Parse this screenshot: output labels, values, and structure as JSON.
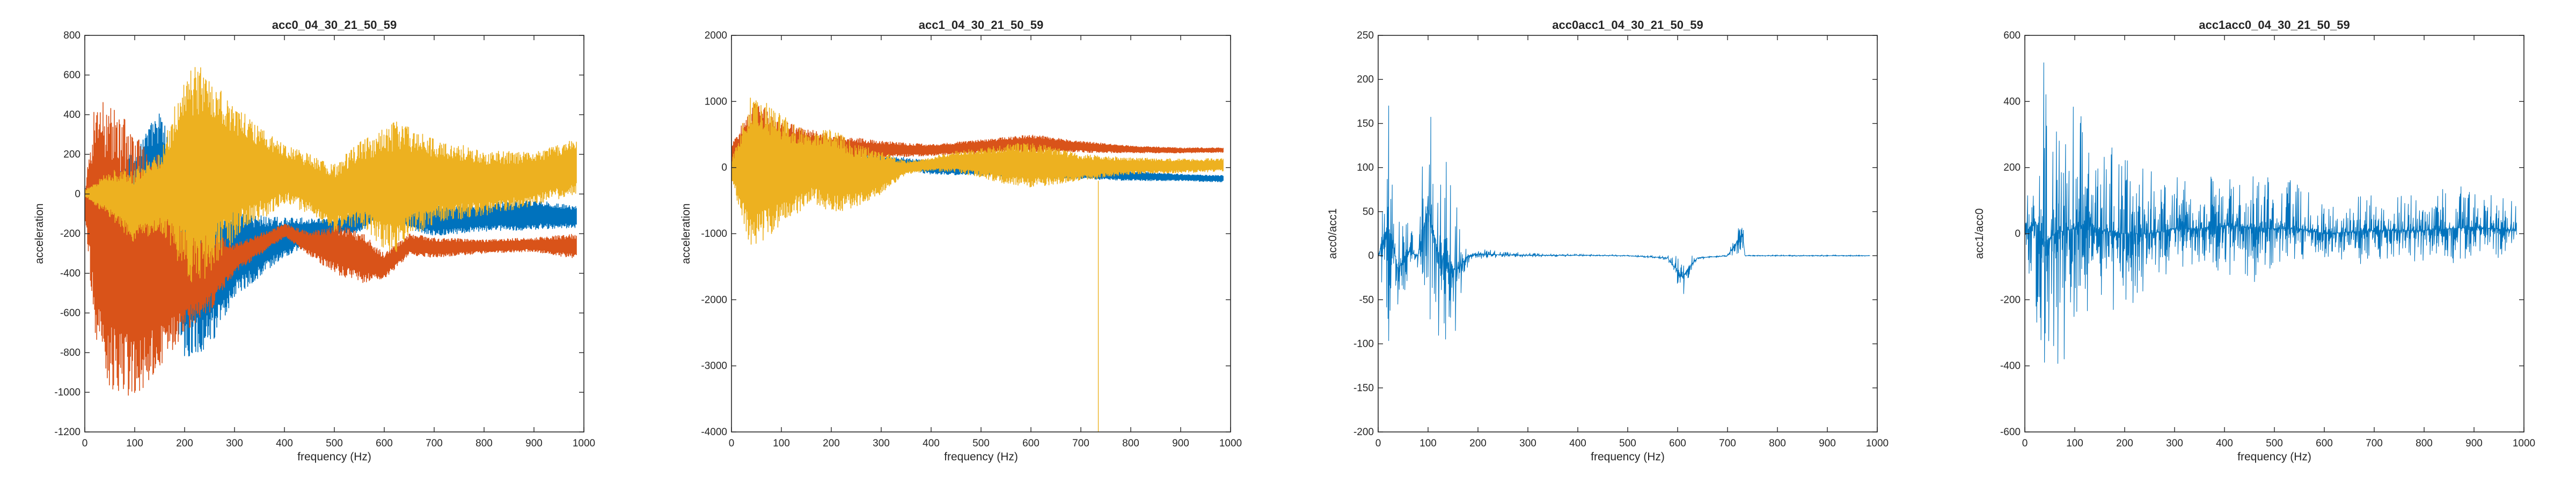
{
  "figure": {
    "panels": [
      {
        "title": "acc0_04_30_21_50_59",
        "xlabel": "frequency (Hz)",
        "ylabel": "acceleration",
        "xlim": [
          0,
          1000
        ],
        "ylim": [
          -1200,
          800
        ],
        "xticks": [
          0,
          100,
          200,
          300,
          400,
          500,
          600,
          700,
          800,
          900,
          1000
        ],
        "yticks": [
          -1200,
          -1000,
          -800,
          -600,
          -400,
          -200,
          0,
          200,
          400,
          600,
          800
        ]
      },
      {
        "title": "acc1_04_30_21_50_59",
        "xlabel": "frequency (Hz)",
        "ylabel": "acceleration",
        "xlim": [
          0,
          1000
        ],
        "ylim": [
          -4000,
          2000
        ],
        "xticks": [
          0,
          100,
          200,
          300,
          400,
          500,
          600,
          700,
          800,
          900,
          1000
        ],
        "yticks": [
          -4000,
          -3000,
          -2000,
          -1000,
          0,
          1000,
          2000
        ]
      },
      {
        "title": "acc0acc1_04_30_21_50_59",
        "xlabel": "frequency (Hz)",
        "ylabel": "acc0/acc1",
        "xlim": [
          0,
          1000
        ],
        "ylim": [
          -200,
          250
        ],
        "xticks": [
          0,
          100,
          200,
          300,
          400,
          500,
          600,
          700,
          800,
          900,
          1000
        ],
        "yticks": [
          -200,
          -150,
          -100,
          -50,
          0,
          50,
          100,
          150,
          200,
          250
        ]
      },
      {
        "title": "acc1acc0_04_30_21_50_59",
        "xlabel": "frequency (Hz)",
        "ylabel": "acc1/acc0",
        "xlim": [
          0,
          1000
        ],
        "ylim": [
          -600,
          600
        ],
        "xticks": [
          0,
          100,
          200,
          300,
          400,
          500,
          600,
          700,
          800,
          900,
          1000
        ],
        "yticks": [
          -600,
          -400,
          -200,
          0,
          200,
          400,
          600
        ]
      }
    ]
  },
  "chart_data": [
    {
      "type": "line",
      "title": "acc0_04_30_21_50_59",
      "xlabel": "frequency (Hz)",
      "ylabel": "acceleration",
      "xlim": [
        0,
        1000
      ],
      "ylim": [
        -1200,
        800
      ],
      "grid": false,
      "series": [
        {
          "color": "#0072BD",
          "x": [
            0,
            20,
            50,
            100,
            150,
            200,
            250,
            300,
            400,
            450,
            500,
            550,
            600,
            650,
            700,
            800,
            900,
            985
          ],
          "upper": [
            30,
            60,
            100,
            250,
            420,
            120,
            10,
            -80,
            -120,
            -120,
            -130,
            -70,
            -50,
            -80,
            -60,
            -45,
            -30,
            -60
          ],
          "lower": [
            -10,
            -60,
            -150,
            -200,
            -300,
            -830,
            -780,
            -520,
            -320,
            -260,
            -200,
            -200,
            -100,
            -180,
            -210,
            -190,
            -180,
            -170
          ]
        },
        {
          "color": "#D95319",
          "x": [
            0,
            20,
            50,
            100,
            150,
            200,
            250,
            300,
            400,
            450,
            500,
            550,
            600,
            650,
            700,
            800,
            900,
            985
          ],
          "upper": [
            0,
            480,
            500,
            300,
            200,
            -100,
            -180,
            -250,
            -150,
            -190,
            -150,
            -180,
            -300,
            -200,
            -220,
            -230,
            -220,
            -200
          ],
          "lower": [
            -100,
            -700,
            -1000,
            -1020,
            -900,
            -700,
            -600,
            -400,
            -220,
            -310,
            -400,
            -450,
            -430,
            -310,
            -320,
            -300,
            -290,
            -330
          ]
        },
        {
          "color": "#EDB120",
          "x": [
            0,
            20,
            50,
            100,
            150,
            200,
            225,
            250,
            300,
            400,
            450,
            500,
            550,
            600,
            625,
            650,
            700,
            800,
            900,
            985
          ],
          "upper": [
            20,
            60,
            120,
            130,
            200,
            600,
            650,
            620,
            450,
            250,
            200,
            150,
            260,
            330,
            370,
            340,
            280,
            220,
            210,
            280
          ],
          "lower": [
            -10,
            -60,
            -120,
            -250,
            -180,
            -400,
            -480,
            -400,
            -230,
            -50,
            -100,
            -190,
            -160,
            -280,
            -300,
            -230,
            -150,
            -110,
            -60,
            0
          ]
        }
      ]
    },
    {
      "type": "line",
      "title": "acc1_04_30_21_50_59",
      "xlabel": "frequency (Hz)",
      "ylabel": "acceleration",
      "xlim": [
        0,
        1000
      ],
      "ylim": [
        -4000,
        2000
      ],
      "grid": false,
      "series": [
        {
          "color": "#0072BD",
          "x": [
            0,
            50,
            100,
            200,
            300,
            350,
            400,
            500,
            600,
            700,
            800,
            900,
            985
          ],
          "upper": [
            100,
            300,
            200,
            200,
            200,
            150,
            100,
            50,
            0,
            -20,
            -50,
            -100,
            -120
          ],
          "lower": [
            -100,
            -300,
            -200,
            -150,
            -100,
            -50,
            -100,
            -120,
            -150,
            -170,
            -200,
            -200,
            -220
          ]
        },
        {
          "color": "#D95319",
          "x": [
            0,
            50,
            100,
            200,
            300,
            400,
            500,
            600,
            700,
            800,
            900,
            985
          ],
          "upper": [
            400,
            1000,
            700,
            500,
            400,
            350,
            420,
            500,
            400,
            330,
            300,
            300
          ],
          "lower": [
            -100,
            -200,
            -100,
            50,
            150,
            180,
            210,
            230,
            230,
            220,
            220,
            230
          ]
        },
        {
          "color": "#EDB120",
          "x": [
            0,
            40,
            80,
            120,
            160,
            200,
            250,
            300,
            350,
            400,
            450,
            500,
            550,
            600,
            650,
            700,
            800,
            900,
            985
          ],
          "upper": [
            100,
            1200,
            900,
            700,
            500,
            600,
            350,
            250,
            100,
            150,
            250,
            300,
            350,
            380,
            300,
            200,
            150,
            130,
            140
          ],
          "lower": [
            -200,
            -1300,
            -1000,
            -800,
            -500,
            -700,
            -600,
            -400,
            -100,
            -50,
            -80,
            -150,
            -250,
            -300,
            -250,
            -200,
            -100,
            -80,
            -60
          ]
        }
      ]
    },
    {
      "type": "line",
      "title": "acc0acc1_04_30_21_50_59",
      "xlabel": "frequency (Hz)",
      "ylabel": "acc0/acc1",
      "xlim": [
        0,
        1000
      ],
      "ylim": [
        -200,
        250
      ],
      "grid": false,
      "series": [
        {
          "color": "#0072BD",
          "x": [
            0,
            20,
            40,
            60,
            80,
            100,
            120,
            140,
            160,
            180,
            200,
            250,
            300,
            400,
            500,
            580,
            600,
            610,
            620,
            640,
            700,
            730,
            735,
            800,
            900,
            985
          ],
          "upper": [
            2,
            220,
            40,
            50,
            20,
            210,
            130,
            120,
            50,
            10,
            8,
            5,
            3,
            2,
            1,
            0,
            0,
            0,
            0,
            0,
            1,
            52,
            1,
            1,
            1,
            1
          ],
          "lower": [
            -2,
            -150,
            -70,
            -40,
            -20,
            -100,
            -120,
            -150,
            -80,
            -10,
            -4,
            -3,
            -2,
            -1,
            -1,
            -5,
            -35,
            -50,
            -30,
            -5,
            -1,
            -1,
            -1,
            -1,
            -1,
            -1
          ]
        }
      ]
    },
    {
      "type": "line",
      "title": "acc1acc0_04_30_21_50_59",
      "xlabel": "frequency (Hz)",
      "ylabel": "acc1/acc0",
      "xlim": [
        0,
        1000
      ],
      "ylim": [
        -600,
        600
      ],
      "grid": false,
      "series": [
        {
          "color": "#0072BD",
          "x": [
            0,
            20,
            40,
            60,
            80,
            100,
            120,
            150,
            200,
            250,
            300,
            350,
            400,
            450,
            500,
            550,
            600,
            700,
            800,
            900,
            985
          ],
          "upper": [
            10,
            480,
            530,
            450,
            420,
            380,
            360,
            300,
            250,
            200,
            180,
            150,
            200,
            220,
            180,
            150,
            100,
            120,
            130,
            150,
            100
          ],
          "lower": [
            -10,
            -400,
            -580,
            -450,
            -400,
            -350,
            -300,
            -280,
            -250,
            -200,
            -150,
            -120,
            -150,
            -180,
            -150,
            -120,
            -100,
            -100,
            -110,
            -110,
            -80
          ]
        }
      ]
    }
  ]
}
